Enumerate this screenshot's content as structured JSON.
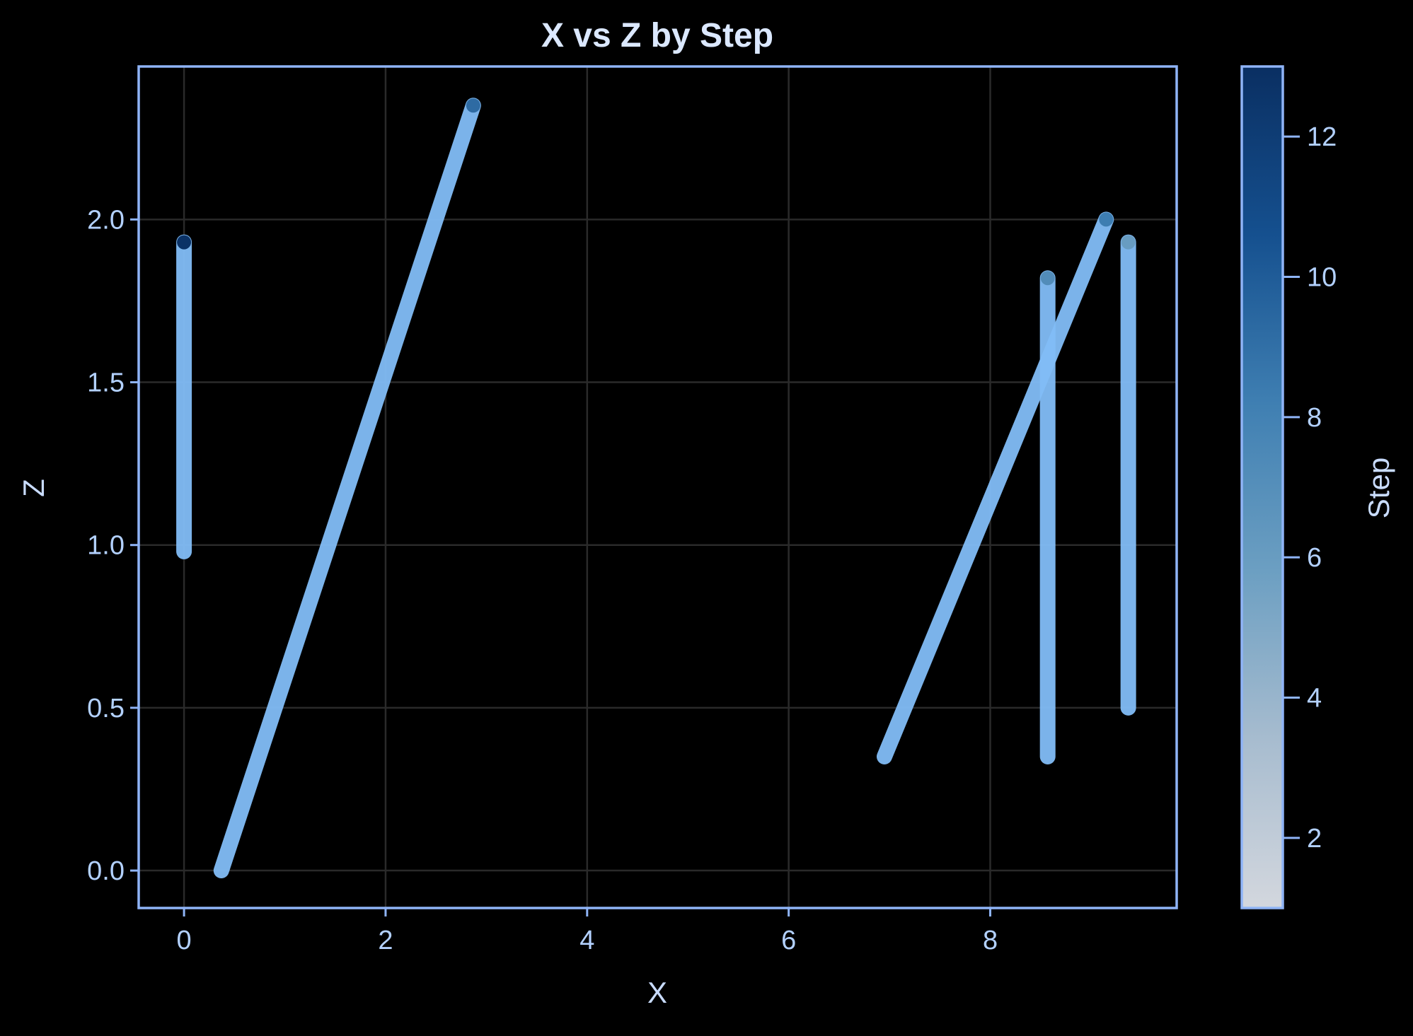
{
  "chart_data": {
    "type": "scatter",
    "title": "X vs Z by Step",
    "xlabel": "X",
    "ylabel": "Z",
    "xlim": [
      -0.45,
      9.85
    ],
    "ylim": [
      -0.115,
      2.47
    ],
    "xticks": [
      0,
      2,
      4,
      6,
      8
    ],
    "yticks": [
      0.0,
      0.5,
      1.0,
      1.5,
      2.0
    ],
    "xtick_labels": [
      "0",
      "2",
      "4",
      "6",
      "8"
    ],
    "ytick_labels": [
      "0.0",
      "0.5",
      "1.0",
      "1.5",
      "2.0"
    ],
    "grid": true,
    "colorbar": {
      "label": "Step",
      "range": [
        1,
        13
      ],
      "ticks": [
        2,
        4,
        6,
        8,
        10,
        12
      ],
      "tick_labels": [
        "2",
        "4",
        "6",
        "8",
        "10",
        "12"
      ],
      "colormap_stops": [
        "#d3d7de",
        "#a7bccf",
        "#6c9fc2",
        "#3f7fb2",
        "#15508f",
        "#0a2f62"
      ]
    },
    "series": [
      {
        "x": [
          0.0,
          0.0
        ],
        "z": [
          0.98,
          1.93
        ],
        "end_step": 12.8
      },
      {
        "x": [
          0.37,
          2.87
        ],
        "z": [
          0.0,
          2.35
        ],
        "end_step": 9.2
      },
      {
        "x": [
          6.95,
          9.15
        ],
        "z": [
          0.35,
          2.0
        ],
        "end_step": 8.3
      },
      {
        "x": [
          8.57,
          8.57
        ],
        "z": [
          0.35,
          1.82
        ],
        "end_step": 7.2
      },
      {
        "x": [
          9.37,
          9.37
        ],
        "z": [
          0.5,
          1.93
        ],
        "end_step": 6.0
      }
    ],
    "line_color": "#82bdf7",
    "frame_color": "#8fb4f7",
    "grid_color": "#2a2a2a"
  }
}
